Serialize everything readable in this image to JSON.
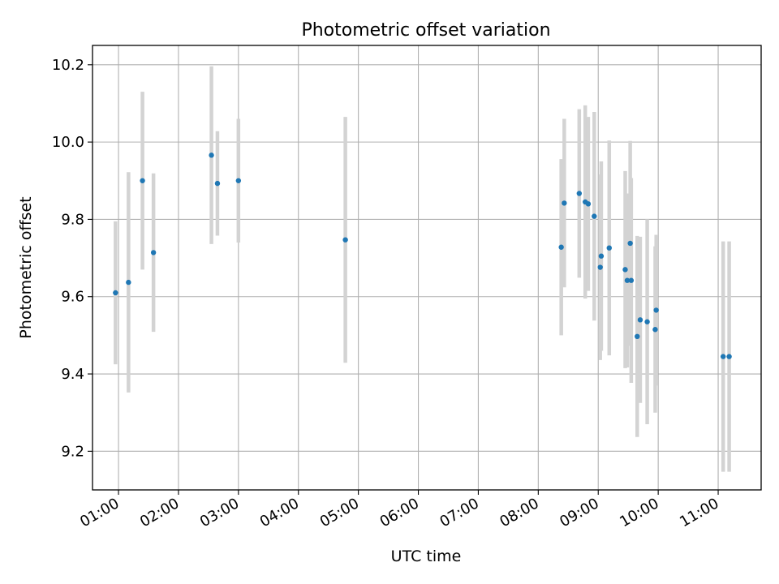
{
  "chart_data": {
    "type": "scatter",
    "title": "Photometric offset variation",
    "xlabel": "UTC time",
    "ylabel": "Photometric offset",
    "xlim": [
      "00:34",
      "11:43"
    ],
    "ylim": [
      9.1,
      10.25
    ],
    "x_ticks": [
      "01:00",
      "02:00",
      "03:00",
      "04:00",
      "05:00",
      "06:00",
      "07:00",
      "08:00",
      "09:00",
      "10:00",
      "11:00"
    ],
    "y_ticks": [
      9.2,
      9.4,
      9.6,
      9.8,
      10.0,
      10.2
    ],
    "grid": true,
    "colors": {
      "point": "#1f77b4",
      "errorbar": "#d3d3d3",
      "grid": "#b0b0b0"
    },
    "points": [
      {
        "x": "00:57",
        "y": 9.61,
        "err": 0.185
      },
      {
        "x": "01:10",
        "y": 9.637,
        "err": 0.285
      },
      {
        "x": "01:24",
        "y": 9.9,
        "err": 0.23
      },
      {
        "x": "01:35",
        "y": 9.714,
        "err": 0.205
      },
      {
        "x": "02:33",
        "y": 9.966,
        "err": 0.23
      },
      {
        "x": "02:39",
        "y": 9.893,
        "err": 0.135
      },
      {
        "x": "03:00",
        "y": 9.9,
        "err": 0.16
      },
      {
        "x": "04:47",
        "y": 9.747,
        "err": 0.318
      },
      {
        "x": "08:23",
        "y": 9.728,
        "err": 0.228
      },
      {
        "x": "08:26",
        "y": 9.842,
        "err": 0.218
      },
      {
        "x": "08:41",
        "y": 9.867,
        "err": 0.218
      },
      {
        "x": "08:47",
        "y": 9.845,
        "err": 0.25
      },
      {
        "x": "08:50",
        "y": 9.84,
        "err": 0.225
      },
      {
        "x": "08:56",
        "y": 9.808,
        "err": 0.27
      },
      {
        "x": "09:02",
        "y": 9.676,
        "err": 0.24
      },
      {
        "x": "09:03",
        "y": 9.705,
        "err": 0.245
      },
      {
        "x": "09:11",
        "y": 9.726,
        "err": 0.278
      },
      {
        "x": "09:27",
        "y": 9.67,
        "err": 0.255
      },
      {
        "x": "09:29",
        "y": 9.642,
        "err": 0.225
      },
      {
        "x": "09:32",
        "y": 9.738,
        "err": 0.265
      },
      {
        "x": "09:33",
        "y": 9.642,
        "err": 0.265
      },
      {
        "x": "09:39",
        "y": 9.497,
        "err": 0.26
      },
      {
        "x": "09:42",
        "y": 9.54,
        "err": 0.215
      },
      {
        "x": "09:49",
        "y": 9.535,
        "err": 0.265
      },
      {
        "x": "09:57",
        "y": 9.515,
        "err": 0.215
      },
      {
        "x": "09:58",
        "y": 9.565,
        "err": 0.195
      },
      {
        "x": "11:05",
        "y": 9.445,
        "err": 0.298
      },
      {
        "x": "11:11",
        "y": 9.445,
        "err": 0.298
      }
    ]
  }
}
